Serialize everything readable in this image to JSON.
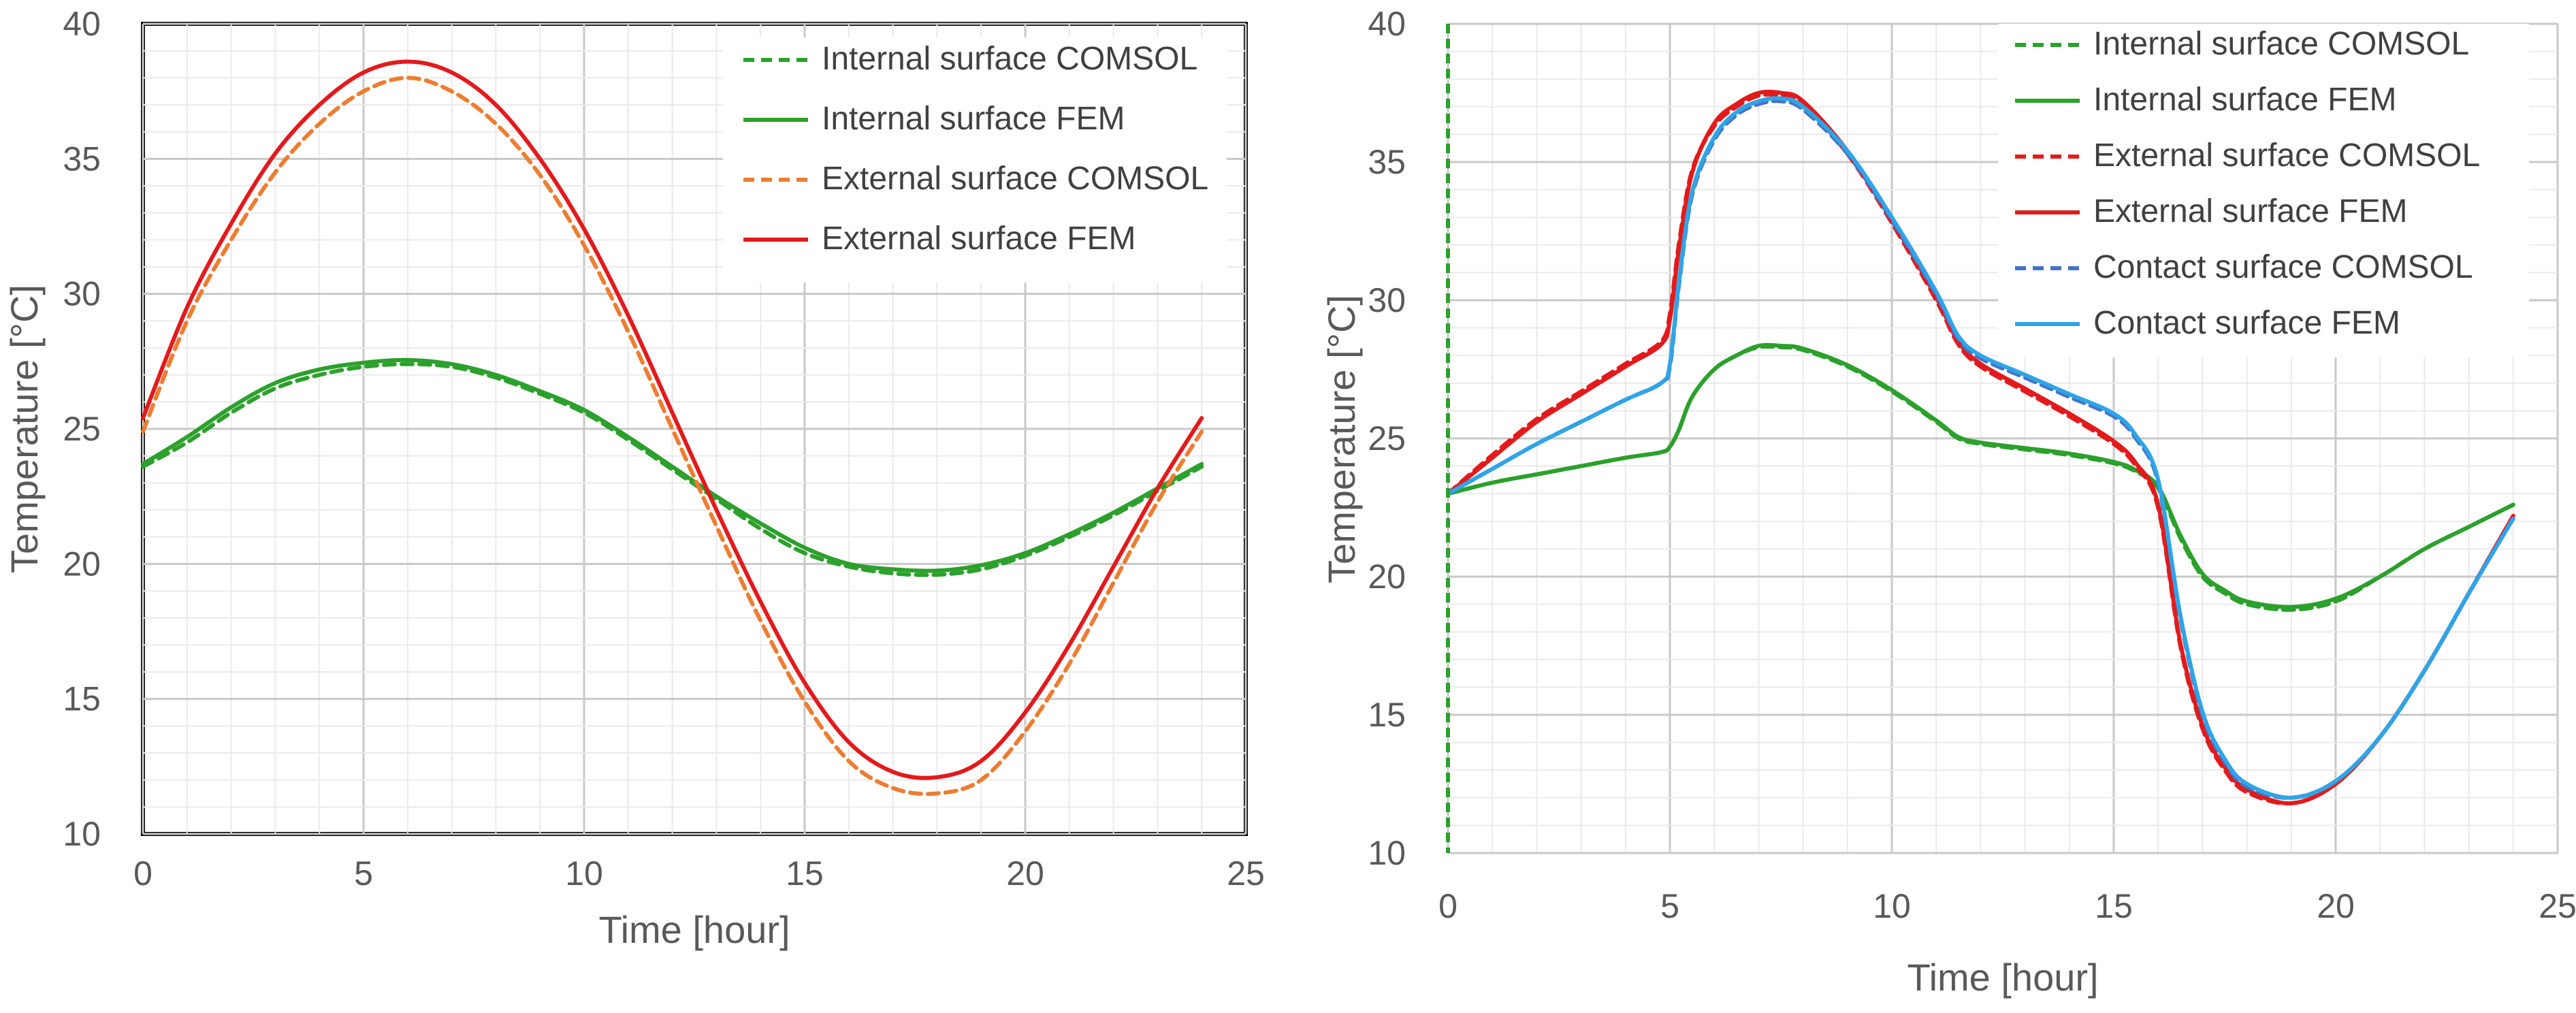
{
  "chart_data": [
    {
      "type": "line",
      "title": "",
      "xlabel": "Time [hour]",
      "ylabel": "Temperature [°C]",
      "xlim": [
        0,
        25
      ],
      "ylim": [
        10,
        40
      ],
      "x_ticks": [
        0,
        5,
        10,
        15,
        20,
        25
      ],
      "y_ticks": [
        10,
        15,
        20,
        25,
        30,
        35,
        40
      ],
      "grid": true,
      "legend_position": "top-right",
      "series": [
        {
          "name": "Internal surface COMSOL",
          "color": "#2ca02c",
          "dash": true,
          "x": [
            0,
            1,
            2,
            3,
            4,
            5,
            6,
            7,
            8,
            9,
            10,
            11,
            12,
            13,
            14,
            15,
            16,
            17,
            18,
            19,
            20,
            21,
            22,
            23,
            24
          ],
          "y": [
            23.6,
            24.5,
            25.6,
            26.5,
            27.0,
            27.3,
            27.4,
            27.3,
            26.9,
            26.3,
            25.6,
            24.6,
            23.5,
            22.4,
            21.3,
            20.4,
            19.9,
            19.65,
            19.6,
            19.8,
            20.3,
            21.0,
            21.8,
            22.7,
            23.6
          ]
        },
        {
          "name": "Internal surface FEM",
          "color": "#2ca02c",
          "dash": false,
          "x": [
            0,
            1,
            2,
            3,
            4,
            5,
            6,
            7,
            8,
            9,
            10,
            11,
            12,
            13,
            14,
            15,
            16,
            17,
            18,
            19,
            20,
            21,
            22,
            23,
            24
          ],
          "y": [
            23.7,
            24.7,
            25.8,
            26.7,
            27.2,
            27.45,
            27.55,
            27.4,
            27.0,
            26.4,
            25.7,
            24.7,
            23.6,
            22.5,
            21.5,
            20.6,
            20.0,
            19.8,
            19.75,
            19.95,
            20.4,
            21.1,
            21.9,
            22.8,
            23.7
          ]
        },
        {
          "name": "External surface COMSOL",
          "color": "#ed7d31",
          "dash": true,
          "x": [
            0,
            1,
            2,
            3,
            4,
            5,
            6,
            7,
            8,
            9,
            10,
            11,
            12,
            13,
            14,
            15,
            16,
            17,
            18,
            19,
            20,
            21,
            22,
            23,
            24
          ],
          "y": [
            24.9,
            29.0,
            32.0,
            34.5,
            36.3,
            37.5,
            38.0,
            37.5,
            36.3,
            34.4,
            31.8,
            28.6,
            25.0,
            21.4,
            17.9,
            14.9,
            12.7,
            11.7,
            11.5,
            12.0,
            13.8,
            16.3,
            19.3,
            22.3,
            24.9
          ]
        },
        {
          "name": "External surface FEM",
          "color": "#e31a1c",
          "dash": false,
          "x": [
            0,
            1,
            2,
            3,
            4,
            5,
            6,
            7,
            8,
            9,
            10,
            11,
            12,
            13,
            14,
            15,
            16,
            17,
            18,
            19,
            20,
            21,
            22,
            23,
            24
          ],
          "y": [
            25.4,
            29.5,
            32.6,
            35.2,
            37.0,
            38.2,
            38.6,
            38.2,
            37.0,
            35.0,
            32.4,
            29.2,
            25.6,
            22.0,
            18.6,
            15.6,
            13.4,
            12.3,
            12.1,
            12.7,
            14.5,
            17.0,
            19.9,
            22.8,
            25.4
          ]
        }
      ]
    },
    {
      "type": "line",
      "title": "",
      "xlabel": "Time [hour]",
      "ylabel": "Temperature [°C]",
      "xlim": [
        0,
        25
      ],
      "ylim": [
        10,
        40
      ],
      "x_ticks": [
        0,
        5,
        10,
        15,
        20,
        25
      ],
      "y_ticks": [
        10,
        15,
        20,
        25,
        30,
        35,
        40
      ],
      "grid": true,
      "legend_position": "top-right",
      "series": [
        {
          "name": "Internal surface COMSOL",
          "color": "#2ca02c",
          "dash": true,
          "x": [
            0,
            1,
            2,
            3,
            4,
            4.8,
            5,
            5.2,
            5.5,
            6,
            6.5,
            7,
            7.5,
            8,
            9,
            10,
            11,
            11.5,
            12,
            13,
            14,
            15,
            15.5,
            16,
            16.5,
            17,
            17.5,
            18,
            19,
            20,
            21,
            22,
            23,
            24
          ],
          "y": [
            23.0,
            23.4,
            23.7,
            24.0,
            24.3,
            24.5,
            24.7,
            25.3,
            26.5,
            27.5,
            28.0,
            28.3,
            28.3,
            28.2,
            27.6,
            26.7,
            25.6,
            25.0,
            24.8,
            24.6,
            24.4,
            24.1,
            23.8,
            23.2,
            21.4,
            20.0,
            19.4,
            19.0,
            18.8,
            19.1,
            20.0,
            21.0,
            21.8,
            22.6
          ]
        },
        {
          "name": "Internal surface FEM",
          "color": "#2ca02c",
          "dash": false,
          "x": [
            0,
            1,
            2,
            3,
            4,
            4.8,
            5,
            5.2,
            5.5,
            6,
            6.5,
            7,
            7.5,
            8,
            9,
            10,
            11,
            11.5,
            12,
            13,
            14,
            15,
            15.5,
            16,
            16.5,
            17,
            17.5,
            18,
            19,
            20,
            21,
            22,
            23,
            24
          ],
          "y": [
            23.0,
            23.4,
            23.7,
            24.0,
            24.3,
            24.5,
            24.7,
            25.3,
            26.5,
            27.5,
            28.0,
            28.35,
            28.35,
            28.25,
            27.65,
            26.75,
            25.65,
            25.05,
            24.85,
            24.65,
            24.45,
            24.15,
            23.85,
            23.25,
            21.5,
            20.1,
            19.5,
            19.1,
            18.9,
            19.2,
            20.0,
            21.0,
            21.8,
            22.6
          ]
        },
        {
          "name": "External surface COMSOL",
          "color": "#e31a1c",
          "dash": true,
          "x": [
            0,
            1,
            2,
            3,
            4,
            4.8,
            5,
            5.2,
            5.5,
            6,
            6.5,
            7,
            7.5,
            8,
            9,
            10,
            11,
            11.5,
            12,
            13,
            14,
            15,
            15.5,
            16,
            16.5,
            17,
            17.5,
            18,
            19,
            20,
            21,
            22,
            23,
            24
          ],
          "y": [
            23.0,
            24.4,
            25.7,
            26.7,
            27.7,
            28.5,
            29.5,
            32.0,
            34.7,
            36.3,
            37.0,
            37.4,
            37.4,
            37.1,
            35.3,
            32.8,
            30.0,
            28.4,
            27.6,
            26.7,
            25.8,
            24.8,
            24.0,
            22.5,
            17.5,
            14.5,
            13.0,
            12.2,
            11.8,
            12.5,
            14.2,
            16.6,
            19.4,
            22.2
          ]
        },
        {
          "name": "External surface FEM",
          "color": "#e31a1c",
          "dash": false,
          "x": [
            0,
            1,
            2,
            3,
            4,
            4.8,
            5,
            5.2,
            5.5,
            6,
            6.5,
            7,
            7.5,
            8,
            9,
            10,
            11,
            11.5,
            12,
            13,
            14,
            15,
            15.5,
            16,
            16.5,
            17,
            17.5,
            18,
            19,
            20,
            21,
            22,
            23,
            24
          ],
          "y": [
            23.0,
            24.3,
            25.6,
            26.6,
            27.6,
            28.4,
            29.3,
            31.8,
            34.6,
            36.4,
            37.1,
            37.5,
            37.5,
            37.2,
            35.4,
            32.9,
            30.1,
            28.5,
            27.7,
            26.8,
            25.9,
            24.9,
            24.1,
            22.6,
            17.6,
            14.6,
            13.1,
            12.3,
            11.8,
            12.5,
            14.2,
            16.6,
            19.4,
            22.2
          ]
        },
        {
          "name": "Contact surface COMSOL",
          "color": "#4472c4",
          "dash": true,
          "x": [
            0,
            1,
            2,
            3,
            4,
            4.8,
            5,
            5.2,
            5.5,
            6,
            6.5,
            7,
            7.5,
            8,
            9,
            10,
            11,
            11.5,
            12,
            13,
            14,
            15,
            15.5,
            16,
            16.5,
            17,
            17.5,
            18,
            19,
            20,
            21,
            22,
            23,
            24
          ],
          "y": [
            23.0,
            23.9,
            24.8,
            25.6,
            26.4,
            27.0,
            27.6,
            30.5,
            33.8,
            35.8,
            36.7,
            37.1,
            37.2,
            36.9,
            35.3,
            32.9,
            30.2,
            28.6,
            27.9,
            27.2,
            26.5,
            25.8,
            25.0,
            23.4,
            18.5,
            15.0,
            13.3,
            12.4,
            12.0,
            12.6,
            14.2,
            16.6,
            19.4,
            22.1
          ]
        },
        {
          "name": "Contact surface FEM",
          "color": "#2fa4e7",
          "dash": false,
          "x": [
            0,
            1,
            2,
            3,
            4,
            4.8,
            5,
            5.2,
            5.5,
            6,
            6.5,
            7,
            7.5,
            8,
            9,
            10,
            11,
            11.5,
            12,
            13,
            14,
            15,
            15.5,
            16,
            16.5,
            17,
            17.5,
            18,
            19,
            20,
            21,
            22,
            23,
            24
          ],
          "y": [
            23.0,
            23.9,
            24.8,
            25.6,
            26.4,
            27.0,
            27.7,
            30.6,
            33.9,
            35.9,
            36.8,
            37.2,
            37.3,
            37.0,
            35.4,
            33.0,
            30.3,
            28.7,
            28.0,
            27.3,
            26.6,
            25.9,
            25.1,
            23.5,
            18.6,
            15.1,
            13.4,
            12.5,
            12.0,
            12.6,
            14.2,
            16.6,
            19.4,
            22.1
          ]
        }
      ]
    }
  ]
}
